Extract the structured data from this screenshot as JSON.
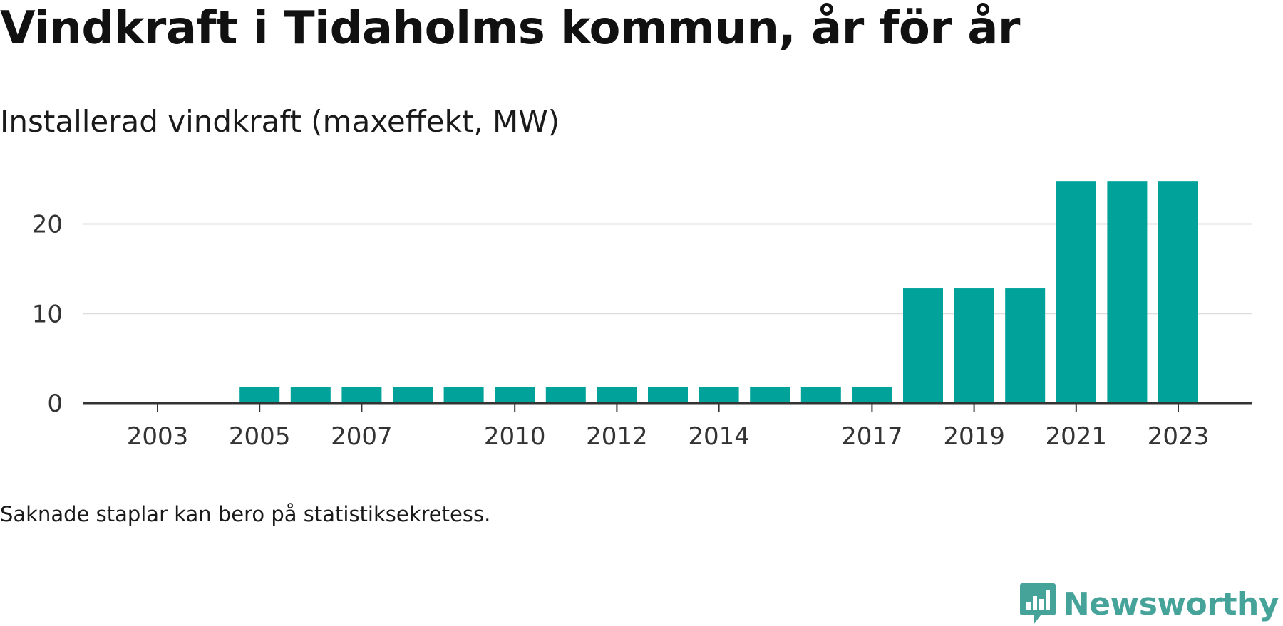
{
  "title": "Vindkraft i Tidaholms kommun, år för år",
  "subtitle": "Installerad vindkraft (maxeffekt, MW)",
  "note": "Saknade staplar kan bero på statistiksekretess.",
  "brand": {
    "name": "Newsworthy",
    "icon": "newsworthy-logo-icon",
    "color": "#46a39a"
  },
  "chart_data": {
    "type": "bar",
    "categories": [
      "2003",
      "2004",
      "2005",
      "2006",
      "2007",
      "2008",
      "2009",
      "2010",
      "2011",
      "2012",
      "2013",
      "2014",
      "2015",
      "2016",
      "2017",
      "2018",
      "2019",
      "2020",
      "2021",
      "2022",
      "2023"
    ],
    "values": [
      null,
      null,
      1.8,
      1.8,
      1.8,
      1.8,
      1.8,
      1.8,
      1.8,
      1.8,
      1.8,
      1.8,
      1.8,
      1.8,
      1.8,
      12.8,
      12.8,
      12.8,
      24.8,
      24.8,
      24.8
    ],
    "x_tick_labels": [
      "2003",
      "2005",
      "2007",
      "2010",
      "2012",
      "2014",
      "2017",
      "2019",
      "2021",
      "2023"
    ],
    "y_ticks": [
      0,
      10,
      20
    ],
    "ylim": [
      0,
      25
    ],
    "xlabel": "",
    "ylabel": "",
    "grid": true,
    "bar_color": "#00a29a",
    "gridline_color": "#dddddd",
    "axis_color": "#333333"
  }
}
